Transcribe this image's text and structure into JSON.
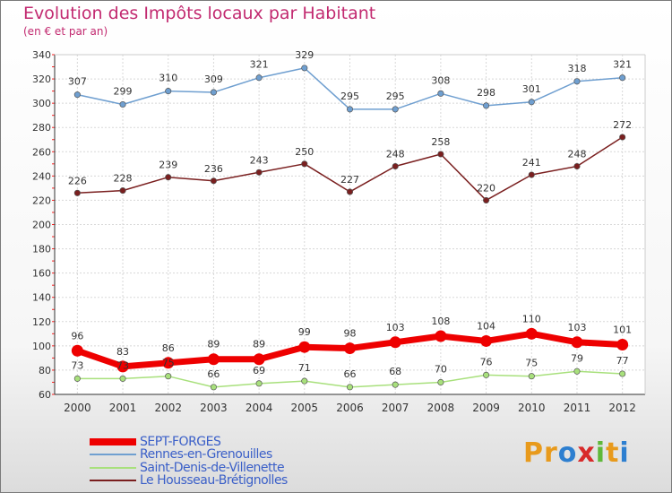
{
  "chart_data": {
    "type": "line",
    "title": "Evolution des Impôts locaux par Habitant",
    "subtitle": "(en € et par an)",
    "categories": [
      "2000",
      "2001",
      "2002",
      "2003",
      "2004",
      "2005",
      "2006",
      "2007",
      "2008",
      "2009",
      "2010",
      "2011",
      "2012"
    ],
    "ylim": [
      60,
      340
    ],
    "yticks": [
      60,
      80,
      100,
      120,
      140,
      160,
      180,
      200,
      220,
      240,
      260,
      280,
      300,
      320,
      340
    ],
    "series": [
      {
        "name": "SEPT-FORGES",
        "color": "#ee0000",
        "values": [
          96,
          83,
          86,
          89,
          89,
          99,
          98,
          103,
          108,
          104,
          110,
          103,
          101
        ]
      },
      {
        "name": "Rennes-en-Grenouilles",
        "color": "#6f9fd0",
        "values": [
          307,
          299,
          310,
          309,
          321,
          329,
          295,
          295,
          308,
          298,
          301,
          318,
          321
        ]
      },
      {
        "name": "Saint-Denis-de-Villenette",
        "color": "#a8e07c",
        "values": [
          73,
          73,
          75,
          66,
          69,
          71,
          66,
          68,
          70,
          76,
          75,
          79,
          77
        ]
      },
      {
        "name": "Le Housseau-Brétignolles",
        "color": "#7a1f1f",
        "values": [
          226,
          228,
          239,
          236,
          243,
          250,
          227,
          248,
          258,
          220,
          241,
          248,
          272
        ]
      }
    ]
  },
  "logo": {
    "letters": [
      "P",
      "r",
      "o",
      "x",
      "i",
      "t",
      "i"
    ],
    "colors": [
      "#e89a1c",
      "#e89a1c",
      "#2d7fd0",
      "#d82a2a",
      "#5fb83a",
      "#e89a1c",
      "#2d7fd0"
    ]
  }
}
